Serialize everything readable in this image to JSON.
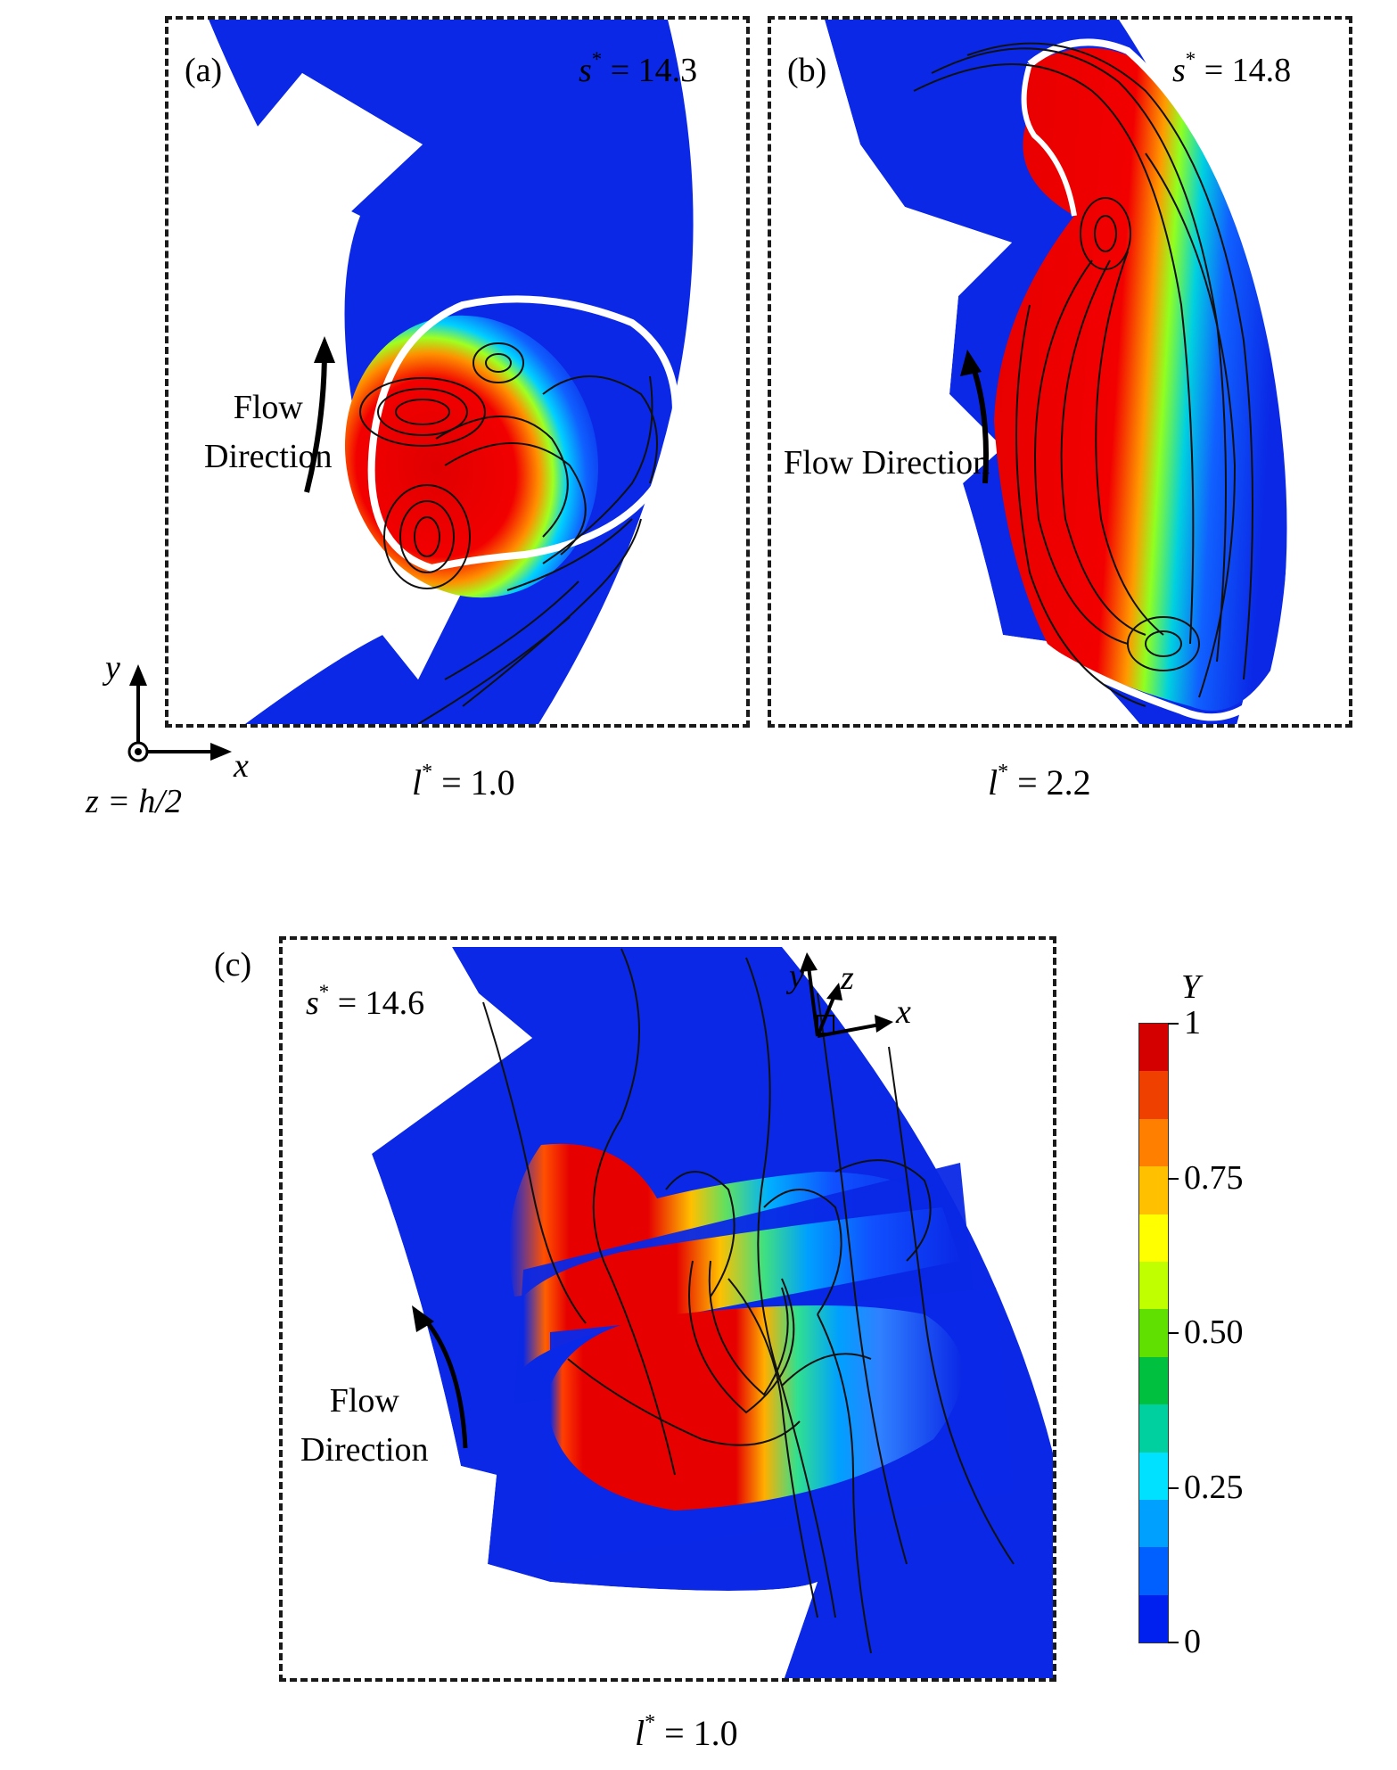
{
  "figure": {
    "panels": [
      {
        "id": "a",
        "tag": "(a)",
        "s_label": "s",
        "s_value": " = 14.3",
        "l_label": "l",
        "l_value": " = 1.0",
        "flow_line1": "Flow",
        "flow_line2": "Direction"
      },
      {
        "id": "b",
        "tag": "(b)",
        "s_label": "s",
        "s_value": " = 14.8",
        "l_label": "l",
        "l_value": " = 2.2",
        "flow_line1": "Flow Direction"
      },
      {
        "id": "c",
        "tag": "(c)",
        "s_label": "s",
        "s_value": " = 14.6",
        "l_label": "l",
        "l_value": " = 1.0",
        "flow_line1": "Flow",
        "flow_line2": "Direction"
      }
    ],
    "axes_2d": {
      "x": "x",
      "y": "y",
      "z_plane": "z = h/2"
    },
    "axes_3d": {
      "x": "x",
      "y": "y",
      "z": "z"
    },
    "colorbar": {
      "title": "Y",
      "ticks": [
        "1",
        "0.75",
        "0.50",
        "0.25",
        "0"
      ],
      "colors": [
        "#d40000",
        "#f04000",
        "#ff8000",
        "#ffc000",
        "#ffff00",
        "#c0ff00",
        "#60e000",
        "#00c040",
        "#00d0a0",
        "#00e0ff",
        "#00a0ff",
        "#0060ff",
        "#0020f0"
      ]
    },
    "star": "*"
  }
}
